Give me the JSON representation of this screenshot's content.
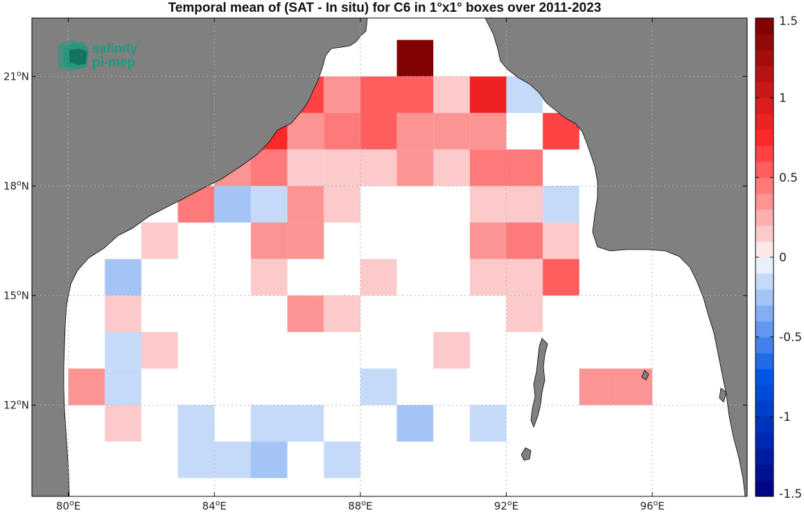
{
  "title": "Temporal mean of (SAT - In situ) for C6 in 1°x1° boxes over 2011-2023",
  "logo": {
    "line1": "salinity",
    "line2": "pi-mep"
  },
  "axes": {
    "x_ticks": [
      {
        "lon": 80,
        "deg": "80",
        "hemi": "E"
      },
      {
        "lon": 84,
        "deg": "84",
        "hemi": "E"
      },
      {
        "lon": 88,
        "deg": "88",
        "hemi": "E"
      },
      {
        "lon": 92,
        "deg": "92",
        "hemi": "E"
      },
      {
        "lon": 96,
        "deg": "96",
        "hemi": "E"
      }
    ],
    "y_ticks": [
      {
        "lat": 12,
        "deg": "12",
        "hemi": "N"
      },
      {
        "lat": 15,
        "deg": "15",
        "hemi": "N"
      },
      {
        "lat": 18,
        "deg": "18",
        "hemi": "N"
      },
      {
        "lat": 21,
        "deg": "21",
        "hemi": "N"
      }
    ],
    "lon_range": [
      79,
      98.6
    ],
    "lat_range": [
      9.5,
      22.6
    ],
    "grid": "dotted"
  },
  "colorbar": {
    "range": [
      -1.5,
      1.5
    ],
    "levels": 30,
    "ticks": [
      "1.5",
      "1",
      "0.5",
      "0",
      "-0.5",
      "-1",
      "-1.5"
    ],
    "tick_values": [
      1.5,
      1,
      0.5,
      0,
      -0.5,
      -1,
      -1.5
    ]
  },
  "colors": {
    "land": "#808080",
    "ocean": "#ffffff",
    "logo": "#1d9a80"
  },
  "chart_data": {
    "type": "heatmap",
    "units": "SAT - In situ",
    "cell_size_deg": 1,
    "cells": [
      {
        "lon": 89.5,
        "lat": 21.5,
        "value": 1.45
      },
      {
        "lon": 86.5,
        "lat": 20.5,
        "value": 0.6
      },
      {
        "lon": 87.5,
        "lat": 20.5,
        "value": 0.3
      },
      {
        "lon": 88.5,
        "lat": 20.5,
        "value": 0.55
      },
      {
        "lon": 89.5,
        "lat": 20.5,
        "value": 0.55
      },
      {
        "lon": 90.5,
        "lat": 20.5,
        "value": 0.15
      },
      {
        "lon": 91.5,
        "lat": 20.5,
        "value": 0.9
      },
      {
        "lon": 92.5,
        "lat": 20.5,
        "value": -0.2
      },
      {
        "lon": 85.5,
        "lat": 19.5,
        "value": 0.75
      },
      {
        "lon": 86.5,
        "lat": 19.5,
        "value": 0.3
      },
      {
        "lon": 87.5,
        "lat": 19.5,
        "value": 0.4
      },
      {
        "lon": 88.5,
        "lat": 19.5,
        "value": 0.5
      },
      {
        "lon": 89.5,
        "lat": 19.5,
        "value": 0.3
      },
      {
        "lon": 90.5,
        "lat": 19.5,
        "value": 0.3
      },
      {
        "lon": 91.5,
        "lat": 19.5,
        "value": 0.3
      },
      {
        "lon": 93.5,
        "lat": 19.5,
        "value": 0.65
      },
      {
        "lon": 84.5,
        "lat": 18.5,
        "value": 0.3
      },
      {
        "lon": 85.5,
        "lat": 18.5,
        "value": 0.45
      },
      {
        "lon": 86.5,
        "lat": 18.5,
        "value": 0.15
      },
      {
        "lon": 87.5,
        "lat": 18.5,
        "value": 0.15
      },
      {
        "lon": 88.5,
        "lat": 18.5,
        "value": 0.15
      },
      {
        "lon": 89.5,
        "lat": 18.5,
        "value": 0.3
      },
      {
        "lon": 90.5,
        "lat": 18.5,
        "value": 0.15
      },
      {
        "lon": 91.5,
        "lat": 18.5,
        "value": 0.45
      },
      {
        "lon": 92.5,
        "lat": 18.5,
        "value": 0.45
      },
      {
        "lon": 83.5,
        "lat": 17.5,
        "value": 0.45
      },
      {
        "lon": 84.5,
        "lat": 17.5,
        "value": -0.25
      },
      {
        "lon": 85.5,
        "lat": 17.5,
        "value": -0.1
      },
      {
        "lon": 86.5,
        "lat": 17.5,
        "value": 0.3
      },
      {
        "lon": 87.5,
        "lat": 17.5,
        "value": 0.15
      },
      {
        "lon": 91.5,
        "lat": 17.5,
        "value": 0.15
      },
      {
        "lon": 92.5,
        "lat": 17.5,
        "value": 0.15
      },
      {
        "lon": 93.5,
        "lat": 17.5,
        "value": -0.1
      },
      {
        "lon": 82.5,
        "lat": 16.5,
        "value": 0.15
      },
      {
        "lon": 85.5,
        "lat": 16.5,
        "value": 0.3
      },
      {
        "lon": 86.5,
        "lat": 16.5,
        "value": 0.3
      },
      {
        "lon": 91.5,
        "lat": 16.5,
        "value": 0.3
      },
      {
        "lon": 92.5,
        "lat": 16.5,
        "value": 0.45
      },
      {
        "lon": 93.5,
        "lat": 16.5,
        "value": 0.15
      },
      {
        "lon": 81.5,
        "lat": 15.5,
        "value": -0.25
      },
      {
        "lon": 85.5,
        "lat": 15.5,
        "value": 0.15
      },
      {
        "lon": 88.5,
        "lat": 15.5,
        "value": 0.15
      },
      {
        "lon": 91.5,
        "lat": 15.5,
        "value": 0.15
      },
      {
        "lon": 92.5,
        "lat": 15.5,
        "value": 0.15
      },
      {
        "lon": 93.5,
        "lat": 15.5,
        "value": 0.55
      },
      {
        "lon": 81.5,
        "lat": 14.5,
        "value": 0.15
      },
      {
        "lon": 86.5,
        "lat": 14.5,
        "value": 0.3
      },
      {
        "lon": 87.5,
        "lat": 14.5,
        "value": 0.15
      },
      {
        "lon": 92.5,
        "lat": 14.5,
        "value": 0.15
      },
      {
        "lon": 81.5,
        "lat": 13.5,
        "value": -0.1
      },
      {
        "lon": 82.5,
        "lat": 13.5,
        "value": 0.15
      },
      {
        "lon": 90.5,
        "lat": 13.5,
        "value": 0.15
      },
      {
        "lon": 80.5,
        "lat": 12.5,
        "value": 0.3
      },
      {
        "lon": 81.5,
        "lat": 12.5,
        "value": -0.1
      },
      {
        "lon": 88.5,
        "lat": 12.5,
        "value": -0.1
      },
      {
        "lon": 94.5,
        "lat": 12.5,
        "value": 0.3
      },
      {
        "lon": 95.5,
        "lat": 12.5,
        "value": 0.3
      },
      {
        "lon": 81.5,
        "lat": 11.5,
        "value": 0.15
      },
      {
        "lon": 83.5,
        "lat": 11.5,
        "value": -0.1
      },
      {
        "lon": 85.5,
        "lat": 11.5,
        "value": -0.1
      },
      {
        "lon": 86.5,
        "lat": 11.5,
        "value": -0.1
      },
      {
        "lon": 89.5,
        "lat": 11.5,
        "value": -0.25
      },
      {
        "lon": 91.5,
        "lat": 11.5,
        "value": -0.1
      },
      {
        "lon": 83.5,
        "lat": 10.5,
        "value": -0.1
      },
      {
        "lon": 84.5,
        "lat": 10.5,
        "value": -0.1
      },
      {
        "lon": 85.5,
        "lat": 10.5,
        "value": -0.25
      },
      {
        "lon": 87.5,
        "lat": 10.5,
        "value": -0.1
      }
    ]
  }
}
